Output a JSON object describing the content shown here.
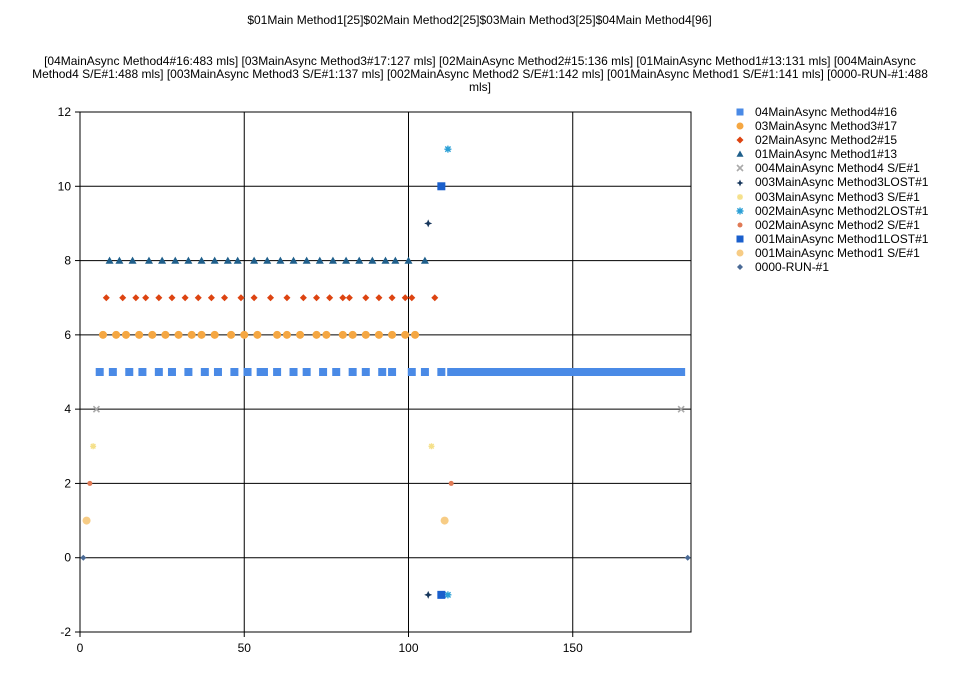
{
  "chart_data": {
    "type": "scatter",
    "title": "$01Main Method1[25]$02Main Method2[25]$03Main Method3[25]$04Main Method4[96]",
    "subtitle": "[04MainAsync Method4#16:483 mls]    [03MainAsync Method3#17:127 mls]    [02MainAsync Method2#15:136 mls]    [01MainAsync Method1#13:131 mls]    [004MainAsync Method4 S/E#1:488 mls]    [003MainAsync Method3 S/E#1:137 mls]    [002MainAsync Method2 S/E#1:142 mls]    [001MainAsync Method1 S/E#1:141 mls]    [0000-RUN-#1:488 mls]",
    "xlim": [
      0,
      186
    ],
    "ylim": [
      -2,
      12
    ],
    "x_ticks": [
      0,
      50,
      100,
      150
    ],
    "y_ticks": [
      -2,
      0,
      2,
      4,
      6,
      8,
      10,
      12
    ],
    "grid": true,
    "legend_position": "right",
    "series": [
      {
        "name": "04MainAsync Method4#16",
        "marker": "square",
        "color": "#4a8ae6",
        "size": 8,
        "x": [
          6,
          10,
          15,
          19,
          24,
          28,
          33,
          38,
          42,
          47,
          51,
          55,
          56,
          60,
          65,
          69,
          74,
          78,
          83,
          87,
          92,
          95,
          101,
          105,
          110,
          113,
          114,
          115,
          116,
          117,
          118,
          119,
          120,
          121,
          122,
          123,
          124,
          125,
          126,
          127,
          128,
          129,
          130,
          131,
          132,
          133,
          134,
          135,
          136,
          137,
          138,
          139,
          140,
          141,
          142,
          143,
          144,
          145,
          146,
          147,
          148,
          149,
          150,
          151,
          152,
          153,
          154,
          155,
          156,
          157,
          158,
          159,
          160,
          161,
          162,
          163,
          164,
          165,
          166,
          167,
          168,
          169,
          170,
          171,
          172,
          173,
          174,
          175,
          176,
          177,
          178,
          179,
          180,
          181,
          182,
          183
        ],
        "y": [
          5,
          5,
          5,
          5,
          5,
          5,
          5,
          5,
          5,
          5,
          5,
          5,
          5,
          5,
          5,
          5,
          5,
          5,
          5,
          5,
          5,
          5,
          5,
          5,
          5,
          5,
          5,
          5,
          5,
          5,
          5,
          5,
          5,
          5,
          5,
          5,
          5,
          5,
          5,
          5,
          5,
          5,
          5,
          5,
          5,
          5,
          5,
          5,
          5,
          5,
          5,
          5,
          5,
          5,
          5,
          5,
          5,
          5,
          5,
          5,
          5,
          5,
          5,
          5,
          5,
          5,
          5,
          5,
          5,
          5,
          5,
          5,
          5,
          5,
          5,
          5,
          5,
          5,
          5,
          5,
          5,
          5,
          5,
          5,
          5,
          5,
          5,
          5,
          5,
          5,
          5,
          5,
          5,
          5,
          5,
          5
        ]
      },
      {
        "name": "03MainAsync Method3#17",
        "marker": "circle",
        "color": "#f5a742",
        "size": 8,
        "x": [
          7,
          11,
          14,
          18,
          22,
          26,
          30,
          34,
          37,
          41,
          46,
          50,
          54,
          60,
          63,
          67,
          72,
          75,
          80,
          83,
          87,
          91,
          95,
          99,
          102
        ],
        "y": [
          6,
          6,
          6,
          6,
          6,
          6,
          6,
          6,
          6,
          6,
          6,
          6,
          6,
          6,
          6,
          6,
          6,
          6,
          6,
          6,
          6,
          6,
          6,
          6,
          6
        ]
      },
      {
        "name": "02MainAsync Method2#15",
        "marker": "diamond",
        "color": "#dd4411",
        "size": 7,
        "x": [
          8,
          13,
          17,
          20,
          24,
          28,
          32,
          36,
          40,
          44,
          49,
          53,
          58,
          63,
          68,
          72,
          76,
          80,
          82,
          87,
          91,
          95,
          99,
          101,
          108
        ],
        "y": [
          7,
          7,
          7,
          7,
          7,
          7,
          7,
          7,
          7,
          7,
          7,
          7,
          7,
          7,
          7,
          7,
          7,
          7,
          7,
          7,
          7,
          7,
          7,
          7,
          7
        ]
      },
      {
        "name": "01MainAsync Method1#13",
        "marker": "triangle",
        "color": "#1f5f8b",
        "size": 8,
        "x": [
          9,
          12,
          16,
          21,
          25,
          29,
          33,
          37,
          41,
          45,
          48,
          53,
          57,
          61,
          65,
          69,
          73,
          77,
          81,
          85,
          89,
          93,
          96,
          100,
          105
        ],
        "y": [
          8,
          8,
          8,
          8,
          8,
          8,
          8,
          8,
          8,
          8,
          8,
          8,
          8,
          8,
          8,
          8,
          8,
          8,
          8,
          8,
          8,
          8,
          8,
          8,
          8
        ]
      },
      {
        "name": "004MainAsync Method4 S/E#1",
        "marker": "x",
        "color": "#aaaaaa",
        "size": 6,
        "x": [
          5,
          183
        ],
        "y": [
          4,
          4
        ]
      },
      {
        "name": "003MainAsync Method3LOST#1",
        "marker": "star4",
        "color": "#16365c",
        "size": 8,
        "x": [
          106,
          106
        ],
        "y": [
          9,
          -1
        ]
      },
      {
        "name": "003MainAsync Method3 S/E#1",
        "marker": "star",
        "color": "#f5e08a",
        "size": 6,
        "x": [
          4,
          107
        ],
        "y": [
          3,
          3
        ]
      },
      {
        "name": "002MainAsync Method2LOST#1",
        "marker": "star",
        "color": "#2a9fd6",
        "size": 7,
        "x": [
          112,
          112
        ],
        "y": [
          11,
          -1
        ]
      },
      {
        "name": "002MainAsync Method2 S/E#1",
        "marker": "circle",
        "color": "#e07a55",
        "size": 5,
        "x": [
          3,
          113
        ],
        "y": [
          2,
          2
        ]
      },
      {
        "name": "001MainAsync Method1LOST#1",
        "marker": "square",
        "color": "#1a5fcc",
        "size": 8,
        "x": [
          110,
          110
        ],
        "y": [
          10,
          -1
        ]
      },
      {
        "name": "001MainAsync Method1 S/E#1",
        "marker": "circle",
        "color": "#f7cc85",
        "size": 8,
        "x": [
          2,
          111
        ],
        "y": [
          1,
          1
        ]
      },
      {
        "name": "0000-RUN-#1",
        "marker": "diamond",
        "color": "#4a6a96",
        "size": 6,
        "x": [
          1,
          185
        ],
        "y": [
          0,
          0
        ]
      }
    ]
  }
}
